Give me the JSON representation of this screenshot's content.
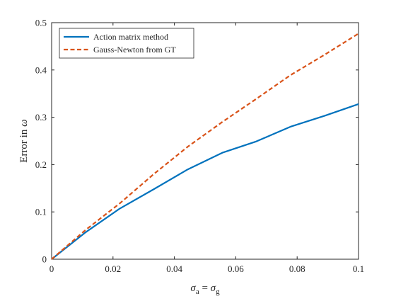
{
  "chart_data": {
    "type": "line",
    "title": "",
    "xlabel": "σa = σg",
    "xlabel_parts": {
      "sym_left": "σ",
      "sub_left": "a",
      "eq": " = ",
      "sym_right": "σ",
      "sub_right": "g"
    },
    "ylabel": "Error in ω",
    "ylabel_parts": {
      "text": "Error in ",
      "sym": "ω"
    },
    "xlim": [
      0,
      0.1
    ],
    "ylim": [
      0,
      0.5
    ],
    "xticks": [
      0,
      0.02,
      0.04,
      0.06,
      0.08,
      0.1
    ],
    "xtick_labels": [
      "0",
      "0.02",
      "0.04",
      "0.06",
      "0.08",
      "0.1"
    ],
    "yticks": [
      0,
      0.1,
      0.2,
      0.3,
      0.4,
      0.5
    ],
    "ytick_labels": [
      "0",
      "0.1",
      "0.2",
      "0.3",
      "0.4",
      "0.5"
    ],
    "grid": false,
    "legend_position": "top-left",
    "series": [
      {
        "name": "Action matrix method",
        "color": "#0072BD",
        "dash": "solid",
        "x": [
          0,
          0.0111,
          0.0222,
          0.0333,
          0.0444,
          0.0556,
          0.0667,
          0.0778,
          0.0889,
          0.1
        ],
        "y": [
          0,
          0.057,
          0.107,
          0.148,
          0.19,
          0.225,
          0.249,
          0.28,
          0.303,
          0.328
        ]
      },
      {
        "name": "Gauss-Newton from GT",
        "color": "#D95319",
        "dash": "dashed",
        "x": [
          0,
          0.0111,
          0.0222,
          0.0333,
          0.0444,
          0.0556,
          0.0667,
          0.0778,
          0.0889,
          0.1
        ],
        "y": [
          0,
          0.062,
          0.118,
          0.18,
          0.238,
          0.29,
          0.339,
          0.389,
          0.432,
          0.477
        ]
      }
    ]
  }
}
